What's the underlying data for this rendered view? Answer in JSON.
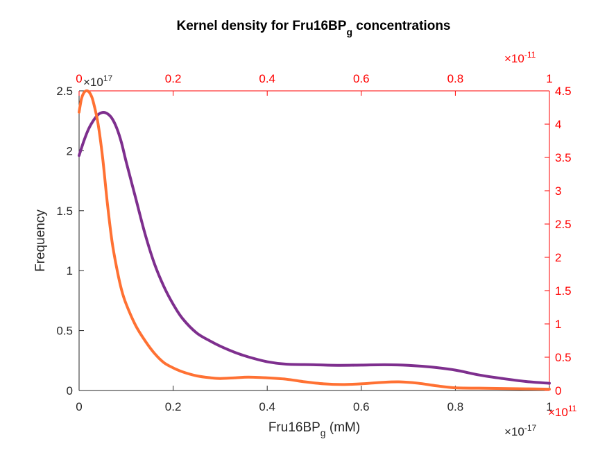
{
  "chart_data": {
    "type": "line",
    "title_main": "Kernel density for Fru16BP",
    "title_sub": "g",
    "title_rest": " concentrations",
    "xlabel_main": "Fru16BP",
    "xlabel_sub": "g",
    "xlabel_rest": " (mM)",
    "ylabel": "Frequency",
    "grid": false,
    "bottom_axis": {
      "range": [
        0,
        1
      ],
      "ticks": [
        "0",
        "0.2",
        "0.4",
        "0.6",
        "0.8",
        "1"
      ],
      "exponent_base": "×10",
      "exponent_power": "-17",
      "color": "#262626"
    },
    "left_axis": {
      "range": [
        0,
        2.5
      ],
      "ticks": [
        "0",
        "0.5",
        "1",
        "1.5",
        "2",
        "2.5"
      ],
      "exponent_base": "×10",
      "exponent_power": "17",
      "color": "#262626"
    },
    "top_axis": {
      "range": [
        0,
        1
      ],
      "ticks": [
        "0",
        "0.2",
        "0.4",
        "0.6",
        "0.8",
        "1"
      ],
      "exponent_base": "×10",
      "exponent_power": "-11",
      "color": "#ff0000"
    },
    "right_axis": {
      "range": [
        0,
        4.5
      ],
      "ticks": [
        "0",
        "0.5",
        "1",
        "1.5",
        "2",
        "2.5",
        "3",
        "3.5",
        "4",
        "4.5"
      ],
      "exponent_base": "×10",
      "exponent_power": "11",
      "color": "#ff0000"
    },
    "series": [
      {
        "color": "#7e2f8e",
        "axes": "bottom-left",
        "x": [
          0,
          0.01,
          0.02,
          0.03,
          0.04,
          0.05,
          0.06,
          0.07,
          0.08,
          0.09,
          0.1,
          0.12,
          0.14,
          0.16,
          0.18,
          0.2,
          0.22,
          0.25,
          0.28,
          0.3,
          0.33,
          0.36,
          0.4,
          0.44,
          0.5,
          0.55,
          0.6,
          0.65,
          0.7,
          0.75,
          0.8,
          0.85,
          0.9,
          0.95,
          1.0
        ],
        "y": [
          1.96,
          2.08,
          2.18,
          2.25,
          2.3,
          2.32,
          2.31,
          2.27,
          2.19,
          2.07,
          1.91,
          1.61,
          1.31,
          1.06,
          0.87,
          0.72,
          0.6,
          0.48,
          0.41,
          0.37,
          0.32,
          0.28,
          0.24,
          0.22,
          0.215,
          0.21,
          0.212,
          0.215,
          0.21,
          0.195,
          0.17,
          0.13,
          0.1,
          0.075,
          0.06
        ]
      },
      {
        "color": "#ff7133",
        "axes": "top-right",
        "x": [
          0,
          0.005,
          0.01,
          0.015,
          0.02,
          0.025,
          0.03,
          0.04,
          0.05,
          0.06,
          0.07,
          0.08,
          0.09,
          0.1,
          0.12,
          0.14,
          0.16,
          0.18,
          0.2,
          0.22,
          0.25,
          0.28,
          0.3,
          0.33,
          0.36,
          0.4,
          0.44,
          0.48,
          0.52,
          0.56,
          0.6,
          0.64,
          0.68,
          0.72,
          0.76,
          0.8,
          0.85,
          0.9,
          0.95,
          1.0
        ],
        "y": [
          4.18,
          4.38,
          4.47,
          4.5,
          4.49,
          4.44,
          4.34,
          4.02,
          3.5,
          2.82,
          2.24,
          1.84,
          1.52,
          1.3,
          0.98,
          0.75,
          0.56,
          0.42,
          0.34,
          0.28,
          0.22,
          0.19,
          0.18,
          0.19,
          0.2,
          0.19,
          0.17,
          0.13,
          0.1,
          0.09,
          0.1,
          0.12,
          0.13,
          0.11,
          0.07,
          0.04,
          0.035,
          0.03,
          0.025,
          0.02
        ]
      }
    ]
  }
}
